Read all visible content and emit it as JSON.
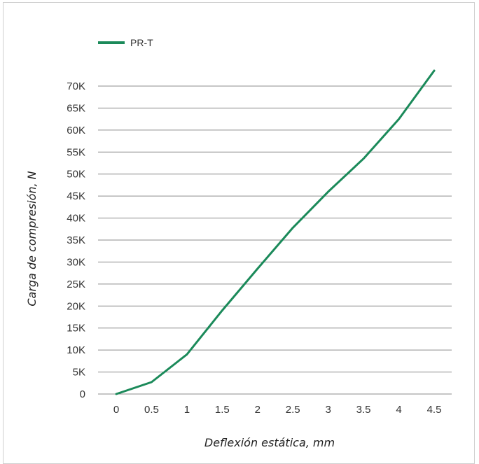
{
  "chart_data": {
    "type": "line",
    "xlabel": "Deflexión estática, mm",
    "ylabel": "Carga de compresión, N",
    "x": [
      0,
      0.5,
      1,
      1.5,
      2,
      2.5,
      3,
      3.5,
      4,
      4.5
    ],
    "series": [
      {
        "name": "PR-T",
        "color": "#1b8a5a",
        "values": [
          0,
          2700,
          9000,
          19000,
          28500,
          37800,
          46000,
          53500,
          62500,
          73500
        ]
      }
    ],
    "xticks": [
      "0",
      "0.5",
      "1",
      "1.5",
      "2",
      "2.5",
      "3",
      "3.5",
      "4",
      "4.5"
    ],
    "yticks": [
      "0",
      "5K",
      "10K",
      "15K",
      "20K",
      "25K",
      "30K",
      "35K",
      "40K",
      "45K",
      "50K",
      "55K",
      "60K",
      "65K",
      "70K"
    ],
    "ylim": [
      0,
      70000
    ],
    "grid": true,
    "legend_position": "top-left"
  }
}
